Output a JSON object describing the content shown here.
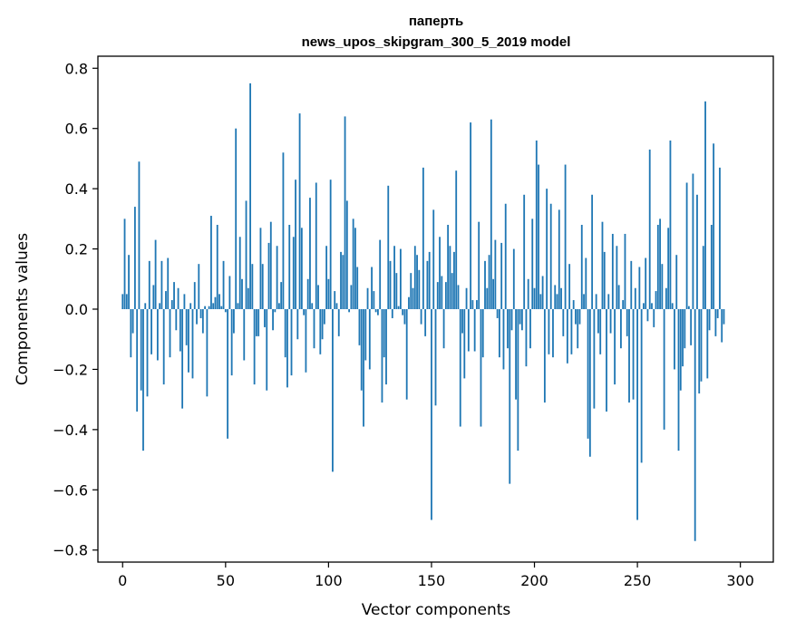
{
  "chart_data": {
    "type": "bar",
    "title": [
      "паперть",
      "news_upos_skipgram_300_5_2019 model"
    ],
    "xlabel": "Vector components",
    "ylabel": "Components values",
    "xlim": [
      -12,
      316
    ],
    "ylim": [
      -0.84,
      0.84
    ],
    "xticks": [
      0,
      50,
      100,
      150,
      200,
      250,
      300
    ],
    "xtick_labels": [
      "0",
      "50",
      "100",
      "150",
      "200",
      "250",
      "300"
    ],
    "yticks": [
      -0.8,
      -0.6,
      -0.4,
      -0.2,
      0.0,
      0.2,
      0.4,
      0.6,
      0.8
    ],
    "ytick_labels": [
      "−0.8",
      "−0.6",
      "−0.4",
      "−0.2",
      "0.0",
      "0.2",
      "0.4",
      "0.6",
      "0.8"
    ],
    "bar_color": "#1f77b4",
    "grid": false,
    "values": [
      0.05,
      0.3,
      0.05,
      0.18,
      -0.16,
      -0.08,
      0.34,
      -0.34,
      0.49,
      -0.27,
      -0.47,
      0.02,
      -0.29,
      0.16,
      -0.15,
      0.08,
      0.23,
      -0.17,
      0.02,
      0.16,
      -0.25,
      0.06,
      0.17,
      -0.16,
      0.03,
      0.09,
      -0.07,
      0.07,
      -0.14,
      -0.33,
      0.05,
      -0.12,
      -0.21,
      0.02,
      -0.23,
      0.09,
      -0.05,
      0.15,
      -0.03,
      -0.08,
      0.01,
      -0.29,
      0.01,
      0.31,
      0.02,
      0.04,
      0.28,
      0.05,
      0.01,
      0.16,
      -0.01,
      -0.43,
      0.11,
      -0.22,
      -0.08,
      0.6,
      0.02,
      0.24,
      0.1,
      -0.17,
      0.36,
      0.07,
      0.75,
      0.15,
      -0.25,
      -0.09,
      -0.09,
      0.27,
      0.15,
      -0.06,
      -0.27,
      0.22,
      0.29,
      -0.07,
      -0.01,
      0.21,
      0.02,
      0.09,
      0.52,
      -0.16,
      -0.26,
      0.28,
      -0.22,
      0.24,
      0.43,
      -0.1,
      0.65,
      0.27,
      -0.02,
      -0.21,
      0.1,
      0.37,
      0.02,
      -0.13,
      0.42,
      0.08,
      -0.15,
      -0.1,
      -0.05,
      0.21,
      0.1,
      0.43,
      -0.54,
      0.06,
      0.02,
      -0.09,
      0.19,
      0.18,
      0.64,
      0.36,
      -0.01,
      0.08,
      0.3,
      0.27,
      0.14,
      -0.12,
      -0.27,
      -0.39,
      -0.17,
      0.07,
      -0.2,
      0.14,
      0.06,
      -0.01,
      -0.02,
      0.23,
      -0.31,
      -0.16,
      -0.25,
      0.41,
      0.16,
      -0.03,
      0.21,
      0.12,
      0.01,
      0.2,
      -0.02,
      -0.05,
      -0.3,
      0.04,
      0.12,
      0.07,
      0.21,
      0.18,
      0.13,
      -0.05,
      0.47,
      -0.09,
      0.16,
      0.19,
      -0.7,
      0.33,
      -0.32,
      0.09,
      0.24,
      0.11,
      -0.13,
      0.09,
      0.28,
      0.21,
      0.12,
      0.19,
      0.46,
      0.08,
      -0.39,
      -0.08,
      -0.23,
      0.07,
      -0.14,
      0.62,
      0.03,
      -0.14,
      0.03,
      0.29,
      -0.39,
      -0.16,
      0.16,
      0.07,
      0.18,
      0.63,
      0.1,
      0.23,
      -0.03,
      -0.16,
      0.22,
      -0.2,
      0.35,
      -0.13,
      -0.58,
      -0.07,
      0.2,
      -0.3,
      -0.47,
      -0.05,
      -0.07,
      0.38,
      -0.19,
      0.1,
      -0.13,
      0.3,
      0.07,
      0.56,
      0.48,
      0.05,
      0.11,
      -0.31,
      0.4,
      -0.15,
      0.35,
      -0.16,
      0.08,
      0.05,
      0.33,
      0.07,
      -0.09,
      0.48,
      -0.18,
      0.15,
      -0.15,
      0.03,
      -0.05,
      -0.13,
      -0.05,
      0.28,
      0.05,
      0.17,
      -0.43,
      -0.49,
      0.38,
      -0.33,
      0.05,
      -0.08,
      -0.15,
      0.29,
      0.19,
      -0.34,
      0.05,
      -0.08,
      0.25,
      -0.25,
      0.21,
      0.08,
      -0.13,
      0.03,
      0.25,
      -0.09,
      -0.31,
      0.16,
      -0.3,
      0.07,
      -0.7,
      0.14,
      -0.51,
      0.02,
      0.17,
      -0.04,
      0.53,
      0.02,
      -0.06,
      0.06,
      0.28,
      0.3,
      0.15,
      -0.4,
      0.07,
      0.27,
      0.56,
      0.02,
      -0.2,
      0.18,
      -0.47,
      -0.27,
      -0.19,
      -0.13,
      0.42,
      0.01,
      -0.12,
      0.45,
      -0.77,
      0.38,
      -0.28,
      -0.24,
      0.21,
      0.69,
      -0.23,
      -0.07,
      0.28,
      0.55,
      -0.09,
      -0.03,
      0.47,
      -0.11,
      -0.05
    ]
  }
}
